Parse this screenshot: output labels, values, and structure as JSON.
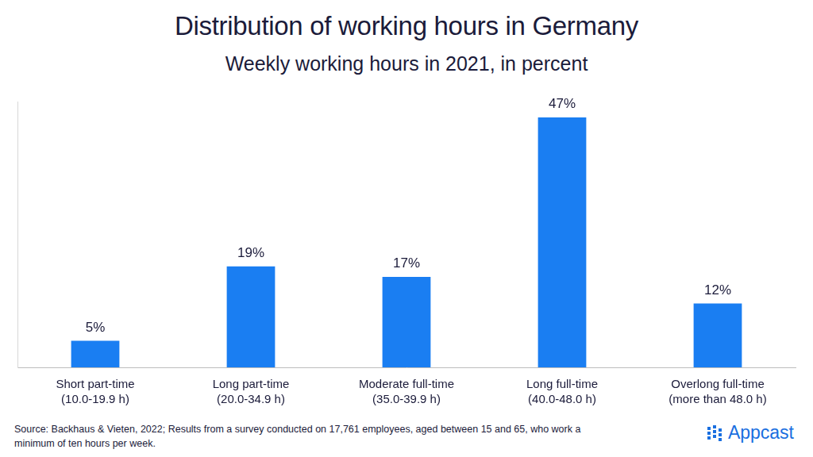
{
  "chart_data": {
    "type": "bar",
    "title": "Distribution of working hours in Germany",
    "subtitle": "Weekly working hours in 2021, in percent",
    "categories": [
      [
        "Short part-time",
        "(10.0-19.9 h)"
      ],
      [
        "Long part-time",
        "(20.0-34.9 h)"
      ],
      [
        "Moderate full-time",
        "(35.0-39.9 h)"
      ],
      [
        "Long full-time",
        "(40.0-48.0 h)"
      ],
      [
        "Overlong full-time",
        "(more than 48.0 h)"
      ]
    ],
    "values": [
      5,
      19,
      17,
      47,
      12
    ],
    "value_labels": [
      "5%",
      "19%",
      "17%",
      "47%",
      "12%"
    ],
    "color": "#1a7ef2",
    "ylim": [
      0,
      50
    ],
    "grid": false,
    "data_labels": true,
    "tick_labels": "x",
    "source": "Source: Backhaus & Vieten, 2022; Results from a survey conducted on 17,761 employees, aged between 15 and 65, who work a minimum of ten hours per week.",
    "brand": "Appcast"
  }
}
